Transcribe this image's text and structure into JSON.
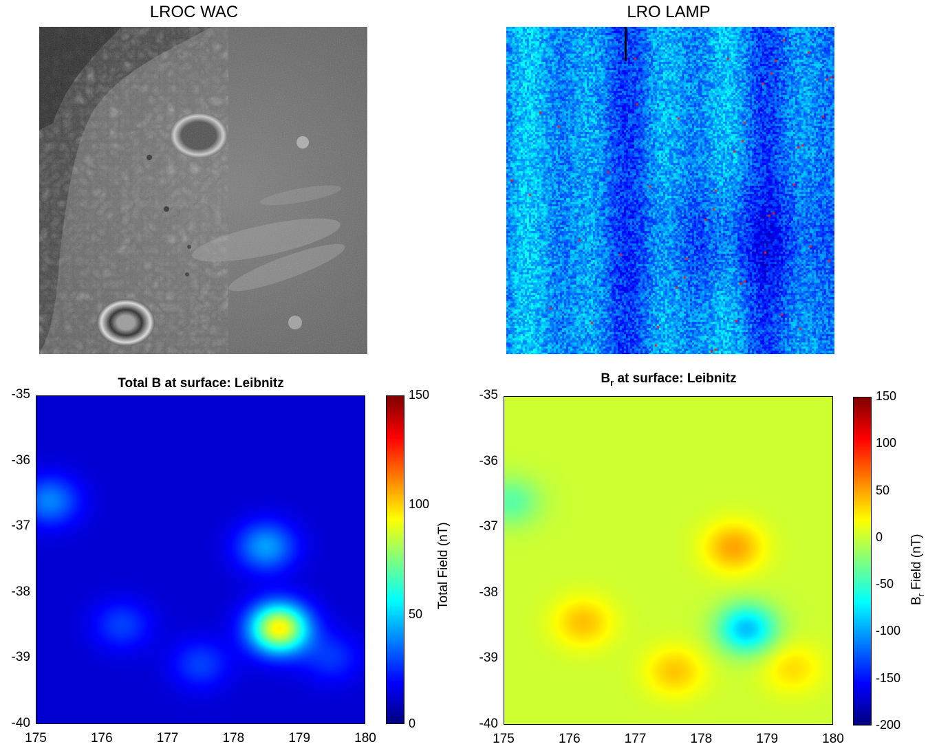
{
  "panels": {
    "wac_title": "LROC WAC",
    "lamp_title": "LRO LAMP"
  },
  "chart_data": [
    {
      "type": "heatmap",
      "title": "Total B at surface: Leibnitz",
      "xlim": [
        175,
        180
      ],
      "ylim": [
        -40,
        -35
      ],
      "xticks": [
        "175",
        "176",
        "177",
        "178",
        "179",
        "180"
      ],
      "yticks": [
        "-35",
        "-36",
        "-37",
        "-38",
        "-39",
        "-40"
      ],
      "colorbar": {
        "label": "Total Field (nT)",
        "range": [
          0,
          150
        ],
        "ticks": [
          "150",
          "100",
          "50",
          "0"
        ],
        "colormap": "jet"
      },
      "features": [
        {
          "lon": 178.7,
          "lat": -38.55,
          "value": 95
        },
        {
          "lon": 178.5,
          "lat": -37.3,
          "value": 42
        },
        {
          "lon": 176.3,
          "lat": -38.5,
          "value": 28
        },
        {
          "lon": 175.2,
          "lat": -36.6,
          "value": 38
        },
        {
          "lon": 177.5,
          "lat": -39.1,
          "value": 28
        },
        {
          "lon": 179.5,
          "lat": -39.0,
          "value": 26
        }
      ],
      "background_value": 12
    },
    {
      "type": "heatmap",
      "title_main": "B",
      "title_sub": "r",
      "title_rest": " at surface: Leibnitz",
      "xlim": [
        175,
        180
      ],
      "ylim": [
        -40,
        -35
      ],
      "xticks": [
        "175",
        "176",
        "177",
        "178",
        "179",
        "180"
      ],
      "yticks": [
        "-35",
        "-36",
        "-37",
        "-38",
        "-39",
        "-40"
      ],
      "colorbar": {
        "label_main": "B",
        "label_sub": "r",
        "label_rest": " Field (nT)",
        "range": [
          -200,
          150
        ],
        "ticks": [
          "150",
          "100",
          "50",
          "0",
          "-50",
          "-100",
          "-150",
          "-200"
        ],
        "colormap": "jet"
      },
      "features": [
        {
          "lon": 178.5,
          "lat": -37.3,
          "value": 50
        },
        {
          "lon": 178.7,
          "lat": -38.55,
          "value": -90
        },
        {
          "lon": 176.2,
          "lat": -38.45,
          "value": 40
        },
        {
          "lon": 177.6,
          "lat": -39.2,
          "value": 38
        },
        {
          "lon": 179.4,
          "lat": -39.15,
          "value": 30
        },
        {
          "lon": 175.1,
          "lat": -36.6,
          "value": -38
        }
      ],
      "background_value": 2
    }
  ]
}
